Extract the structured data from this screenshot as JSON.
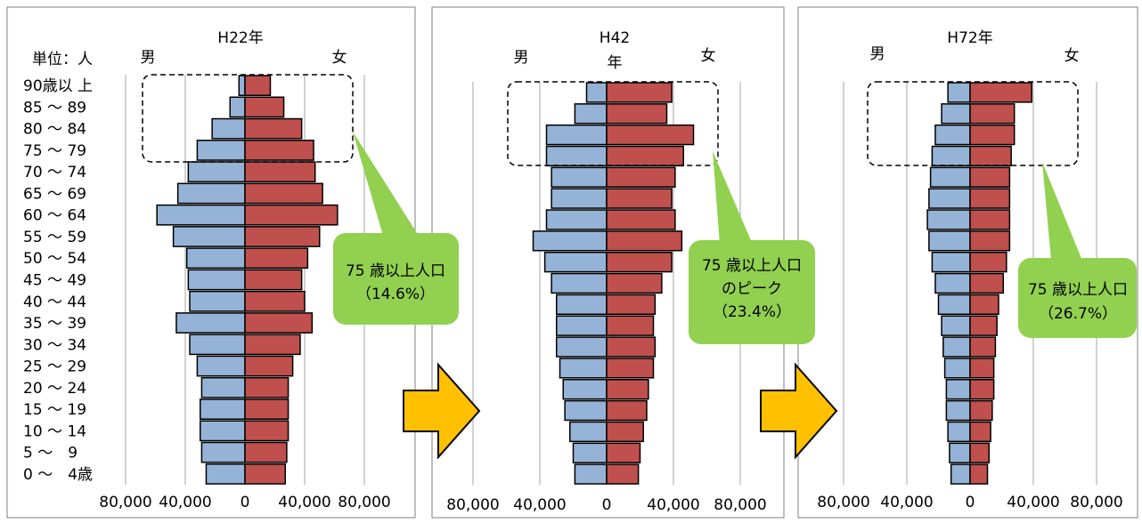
{
  "unit_label": "単位：人",
  "age_labels": [
    "90歳以 上",
    "85 ～ 89",
    "80 ～ 84",
    "75 ～ 79",
    "70 ～ 74",
    "65 ～ 69",
    "60 ～ 64",
    "55 ～ 59",
    "50 ～ 54",
    "45 ～ 49",
    "40 ～ 44",
    "35 ～ 39",
    "30 ～ 34",
    "25 ～ 29",
    "20 ～ 24",
    "15 ～ 19",
    "10 ～ 14",
    "5 ～　9",
    "0 ～　4歳"
  ],
  "colors": {
    "male": "#95b3d7",
    "female": "#c0504d",
    "callout": "#92d050",
    "arrow": "#ffc000"
  },
  "chart_data": [
    {
      "type": "bar",
      "title": "H22年",
      "male_label": "男",
      "female_label": "女",
      "xlim": [
        -80000,
        80000
      ],
      "tick_labels": [
        "80,000",
        "40,000",
        "0",
        "40,000",
        "80,000"
      ],
      "categories": [
        "90歳以 上",
        "85 ～ 89",
        "80 ～ 84",
        "75 ～ 79",
        "70 ～ 74",
        "65 ～ 69",
        "60 ～ 64",
        "55 ～ 59",
        "50 ～ 54",
        "45 ～ 49",
        "40 ～ 44",
        "35 ～ 39",
        "30 ～ 34",
        "25 ～ 29",
        "20 ～ 24",
        "15 ～ 19",
        "10 ～ 14",
        "5 ～　9",
        "0 ～　4歳"
      ],
      "series": [
        {
          "name": "男",
          "values": [
            4000,
            10000,
            22000,
            32000,
            38000,
            45000,
            59000,
            48000,
            39000,
            38000,
            37000,
            46000,
            37000,
            32000,
            29000,
            30000,
            30000,
            29000,
            26000
          ]
        },
        {
          "name": "女",
          "values": [
            17000,
            26000,
            38000,
            46000,
            47000,
            52000,
            62000,
            50000,
            42000,
            38000,
            40000,
            45000,
            37000,
            32000,
            29000,
            29000,
            29000,
            28000,
            27000
          ]
        }
      ],
      "callout": [
        "75 歳以上人口",
        "（14.6%）"
      ]
    },
    {
      "type": "bar",
      "title": "H42年",
      "male_label": "男",
      "female_label": "女",
      "xlim": [
        -80000,
        80000
      ],
      "tick_labels": [
        "80,000",
        "40,000",
        "0",
        "40,000",
        "80,000"
      ],
      "categories": [
        "90歳以 上",
        "85 ～ 89",
        "80 ～ 84",
        "75 ～ 79",
        "70 ～ 74",
        "65 ～ 69",
        "60 ～ 64",
        "55 ～ 59",
        "50 ～ 54",
        "45 ～ 49",
        "40 ～ 44",
        "35 ～ 39",
        "30 ～ 34",
        "25 ～ 29",
        "20 ～ 24",
        "15 ～ 19",
        "10 ～ 14",
        "5 ～　9",
        "0 ～　4歳"
      ],
      "series": [
        {
          "name": "男",
          "values": [
            12000,
            19000,
            36000,
            36000,
            33000,
            33000,
            36000,
            44000,
            37000,
            33000,
            30000,
            30000,
            30000,
            28000,
            26000,
            25000,
            22000,
            20000,
            19000
          ]
        },
        {
          "name": "女",
          "values": [
            39000,
            36000,
            52000,
            46000,
            41000,
            39000,
            41000,
            45000,
            39000,
            33000,
            29000,
            28000,
            29000,
            28000,
            25000,
            24000,
            22000,
            20000,
            19000
          ]
        }
      ],
      "callout": [
        "75 歳以上人口",
        "のピーク",
        "（23.4%）"
      ]
    },
    {
      "type": "bar",
      "title": "H72年",
      "male_label": "男",
      "female_label": "女",
      "xlim": [
        -80000,
        80000
      ],
      "tick_labels": [
        "80,000",
        "40,000",
        "0",
        "40,000",
        "80,000"
      ],
      "categories": [
        "90歳以 上",
        "85 ～ 89",
        "80 ～ 84",
        "75 ～ 79",
        "70 ～ 74",
        "65 ～ 69",
        "60 ～ 64",
        "55 ～ 59",
        "50 ～ 54",
        "45 ～ 49",
        "40 ～ 44",
        "35 ～ 39",
        "30 ～ 34",
        "25 ～ 29",
        "20 ～ 24",
        "15 ～ 19",
        "10 ～ 14",
        "5 ～　9",
        "0 ～　4歳"
      ],
      "series": [
        {
          "name": "男",
          "values": [
            14000,
            18000,
            22000,
            24000,
            25000,
            26000,
            27000,
            26000,
            24000,
            22000,
            20000,
            18000,
            17000,
            16000,
            15000,
            15000,
            14000,
            13000,
            12000
          ]
        },
        {
          "name": "女",
          "values": [
            39000,
            28000,
            28000,
            26000,
            25000,
            25000,
            25000,
            25000,
            23000,
            21000,
            18000,
            17000,
            16000,
            15000,
            15000,
            14000,
            13000,
            12000,
            11000
          ]
        }
      ],
      "callout": [
        "75 歳以上人口",
        "（26.7%）"
      ]
    }
  ]
}
